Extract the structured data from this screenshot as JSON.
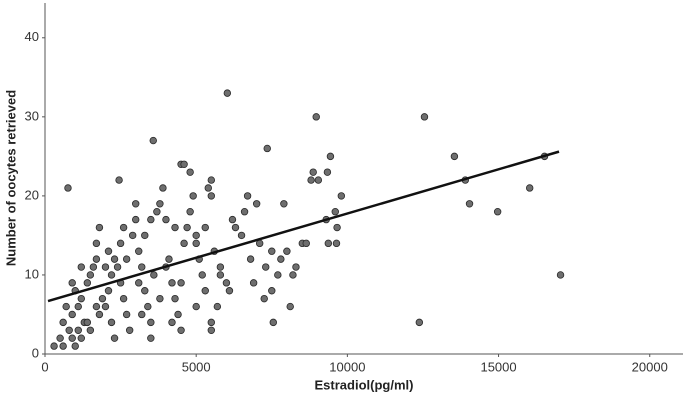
{
  "chart_data": {
    "type": "scatter",
    "x_label": "Estradiol(pg/ml)",
    "y_label": "Number of oocytes retrieved",
    "xlim": [
      0,
      21100
    ],
    "ylim": [
      0,
      44.4
    ],
    "xticks": [
      0,
      5000,
      10000,
      15000,
      20000
    ],
    "yticks": [
      0,
      10,
      20,
      30,
      40
    ],
    "grid": false,
    "color": "#6e6e6e",
    "x": [
      6030,
      8970,
      12550,
      3580,
      7350,
      9440,
      16520,
      13540,
      4500,
      2450,
      13900,
      9340,
      8870,
      9040,
      760,
      16030,
      17050,
      12380,
      14040,
      14970,
      9800,
      9300,
      9660,
      9370,
      9640,
      8510,
      8640,
      8110,
      7550,
      7250,
      300,
      500,
      600,
      800,
      900,
      1000,
      1100,
      1200,
      700,
      900,
      1000,
      1200,
      1300,
      1400,
      1500,
      1600,
      1700,
      1700,
      1800,
      1500,
      1800,
      2000,
      2100,
      2200,
      2300,
      2400,
      2500,
      2600,
      2700,
      2800,
      2900,
      3000,
      3000,
      3100,
      3200,
      3300,
      3400,
      3500,
      3600,
      3700,
      3800,
      3900,
      4000,
      4100,
      4200,
      4300,
      4400,
      4500,
      4600,
      4700,
      4800,
      4800,
      4900,
      5000,
      5100,
      5200,
      5300,
      5400,
      5500,
      5500,
      5500,
      5500,
      5600,
      5700,
      5800,
      6000,
      6100,
      6300,
      6500,
      6600,
      6700,
      6800,
      6900,
      7000,
      7100,
      7300,
      7500,
      7700,
      7800,
      7900,
      8000,
      8200,
      8300,
      8800,
      9600,
      1900,
      2000,
      2200,
      2500,
      2700,
      3300,
      3500,
      4000,
      4300,
      4600,
      5000,
      5300,
      5800,
      6200,
      7500,
      3500,
      4200,
      1400,
      1700,
      2100,
      2600,
      3100,
      3800,
      4500,
      5000,
      1100,
      2300,
      3200,
      600,
      1200,
      900
    ],
    "values": [
      33,
      30,
      30,
      27,
      26,
      25,
      25,
      25,
      24,
      22,
      22,
      23,
      23,
      22,
      21,
      21,
      10,
      4,
      19,
      18,
      20,
      17,
      16,
      14,
      14,
      14,
      14,
      6,
      4,
      7,
      1,
      2,
      1,
      3,
      2,
      1,
      3,
      2,
      6,
      5,
      8,
      7,
      4,
      9,
      10,
      11,
      12,
      14,
      16,
      3,
      5,
      6,
      8,
      10,
      12,
      11,
      9,
      7,
      5,
      3,
      15,
      17,
      19,
      13,
      11,
      8,
      6,
      4,
      10,
      18,
      19,
      21,
      17,
      12,
      9,
      7,
      5,
      3,
      14,
      16,
      18,
      23,
      20,
      15,
      12,
      10,
      8,
      21,
      22,
      20,
      3,
      4,
      13,
      6,
      11,
      9,
      8,
      16,
      15,
      18,
      20,
      12,
      9,
      19,
      14,
      11,
      13,
      10,
      12,
      19,
      13,
      10,
      11,
      22,
      18,
      7,
      11,
      4,
      14,
      12,
      15,
      17,
      11,
      16,
      24,
      14,
      16,
      10,
      17,
      8,
      2,
      4,
      4,
      6,
      13,
      16,
      9,
      7,
      9,
      6,
      6,
      2,
      5,
      4,
      11,
      9
    ],
    "fit_line": {
      "x": [
        100,
        17000
      ],
      "y": [
        6.7,
        25.6
      ]
    }
  }
}
